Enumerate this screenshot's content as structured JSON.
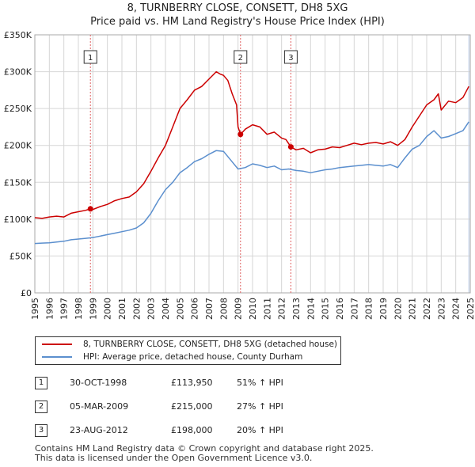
{
  "title": {
    "line1": "8, TURNBERRY CLOSE, CONSETT, DH8 5XG",
    "line2": "Price paid vs. HM Land Registry's House Price Index (HPI)"
  },
  "legend": {
    "property_label": "8, TURNBERRY CLOSE, CONSETT, DH8 5XG (detached house)",
    "hpi_label": "HPI: Average price, detached house, County Durham"
  },
  "colors": {
    "property": "#cc0000",
    "hpi": "#5b8fce",
    "marker_line": "#e06060",
    "shade": "#dde6f4",
    "grid": "#d6d6d6"
  },
  "sales": [
    {
      "num": "1",
      "date": "30-OCT-1998",
      "price": "£113,950",
      "hpi": "51% ↑ HPI"
    },
    {
      "num": "2",
      "date": "05-MAR-2009",
      "price": "£215,000",
      "hpi": "27% ↑ HPI"
    },
    {
      "num": "3",
      "date": "23-AUG-2012",
      "price": "£198,000",
      "hpi": "20% ↑ HPI"
    }
  ],
  "footer": {
    "line1": "Contains HM Land Registry data © Crown copyright and database right 2025.",
    "line2": "This data is licensed under the Open Government Licence v3.0."
  },
  "chart_data": {
    "type": "line",
    "title": "8, TURNBERRY CLOSE, CONSETT, DH8 5XG — Price paid vs. HM Land Registry's House Price Index (HPI)",
    "xlabel": "",
    "ylabel": "",
    "xlim": [
      1995,
      2025
    ],
    "ylim": [
      0,
      350000
    ],
    "grid": true,
    "legend_position": "below",
    "y_ticks": [
      {
        "value": 0,
        "label": "£0"
      },
      {
        "value": 50000,
        "label": "£50K"
      },
      {
        "value": 100000,
        "label": "£100K"
      },
      {
        "value": 150000,
        "label": "£150K"
      },
      {
        "value": 200000,
        "label": "£200K"
      },
      {
        "value": 250000,
        "label": "£250K"
      },
      {
        "value": 300000,
        "label": "£300K"
      },
      {
        "value": 350000,
        "label": "£350K"
      }
    ],
    "x_ticks": [
      "1995",
      "1996",
      "1997",
      "1998",
      "1999",
      "2000",
      "2001",
      "2002",
      "2003",
      "2004",
      "2005",
      "2006",
      "2007",
      "2008",
      "2009",
      "2010",
      "2011",
      "2012",
      "2013",
      "2014",
      "2015",
      "2016",
      "2017",
      "2018",
      "2019",
      "2020",
      "2021",
      "2022",
      "2023",
      "2024",
      "2025"
    ],
    "sale_markers": [
      {
        "label": "1",
        "x": 1998.83,
        "y": 113950
      },
      {
        "label": "2",
        "x": 2009.17,
        "y": 215000
      },
      {
        "label": "3",
        "x": 2012.64,
        "y": 198000
      }
    ],
    "series": [
      {
        "name": "8, TURNBERRY CLOSE, CONSETT, DH8 5XG (detached house)",
        "x": [
          1995.0,
          1995.5,
          1996.0,
          1996.5,
          1997.0,
          1997.5,
          1998.0,
          1998.5,
          1998.83,
          1999.0,
          1999.5,
          2000.0,
          2000.5,
          2001.0,
          2001.5,
          2002.0,
          2002.5,
          2003.0,
          2003.5,
          2004.0,
          2004.5,
          2005.0,
          2005.5,
          2006.0,
          2006.5,
          2007.0,
          2007.5,
          2007.75,
          2008.0,
          2008.3,
          2008.6,
          2008.9,
          2009.0,
          2009.17,
          2009.5,
          2010.0,
          2010.5,
          2011.0,
          2011.5,
          2012.0,
          2012.3,
          2012.64,
          2013.0,
          2013.5,
          2014.0,
          2014.5,
          2015.0,
          2015.5,
          2016.0,
          2016.5,
          2017.0,
          2017.5,
          2018.0,
          2018.5,
          2019.0,
          2019.5,
          2020.0,
          2020.5,
          2021.0,
          2021.5,
          2022.0,
          2022.5,
          2022.8,
          2023.0,
          2023.5,
          2024.0,
          2024.5,
          2024.9
        ],
        "values": [
          102000,
          101000,
          103000,
          104000,
          103000,
          108000,
          110000,
          112000,
          113950,
          113000,
          117000,
          120000,
          125000,
          128000,
          130000,
          137000,
          148000,
          165000,
          183000,
          200000,
          225000,
          250000,
          262000,
          275000,
          280000,
          290000,
          300000,
          297000,
          295000,
          288000,
          270000,
          255000,
          225000,
          215000,
          222000,
          228000,
          225000,
          215000,
          218000,
          210000,
          208000,
          198000,
          194000,
          196000,
          190000,
          194000,
          195000,
          198000,
          197000,
          200000,
          203000,
          201000,
          203000,
          204000,
          202000,
          205000,
          200000,
          208000,
          225000,
          240000,
          255000,
          262000,
          270000,
          248000,
          260000,
          258000,
          265000,
          280000
        ]
      },
      {
        "name": "HPI: Average price, detached house, County Durham",
        "x": [
          1995.0,
          1995.5,
          1996.0,
          1996.5,
          1997.0,
          1997.5,
          1998.0,
          1998.5,
          1999.0,
          1999.5,
          2000.0,
          2000.5,
          2001.0,
          2001.5,
          2002.0,
          2002.5,
          2003.0,
          2003.5,
          2004.0,
          2004.5,
          2005.0,
          2005.5,
          2006.0,
          2006.5,
          2007.0,
          2007.5,
          2008.0,
          2008.5,
          2009.0,
          2009.5,
          2010.0,
          2010.5,
          2011.0,
          2011.5,
          2012.0,
          2012.5,
          2013.0,
          2013.5,
          2014.0,
          2014.5,
          2015.0,
          2015.5,
          2016.0,
          2016.5,
          2017.0,
          2017.5,
          2018.0,
          2018.5,
          2019.0,
          2019.5,
          2020.0,
          2020.5,
          2021.0,
          2021.5,
          2022.0,
          2022.5,
          2023.0,
          2023.5,
          2024.0,
          2024.5,
          2024.9
        ],
        "values": [
          67000,
          67500,
          68000,
          69000,
          70000,
          72000,
          73000,
          74000,
          75000,
          77000,
          79000,
          81000,
          83000,
          85000,
          88000,
          95000,
          108000,
          125000,
          140000,
          150000,
          163000,
          170000,
          178000,
          182000,
          188000,
          193000,
          192000,
          180000,
          168000,
          170000,
          175000,
          173000,
          170000,
          172000,
          167000,
          168000,
          166000,
          165000,
          163000,
          165000,
          167000,
          168000,
          170000,
          171000,
          172000,
          173000,
          174000,
          173000,
          172000,
          174000,
          170000,
          183000,
          195000,
          200000,
          212000,
          220000,
          210000,
          212000,
          216000,
          220000,
          232000
        ]
      }
    ]
  }
}
